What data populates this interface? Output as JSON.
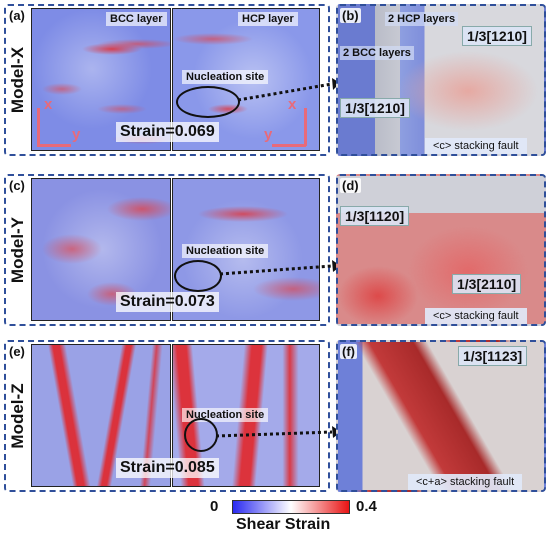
{
  "rows": [
    {
      "panel_left": "(a)",
      "panel_right": "(b)",
      "model": "Model-X",
      "left_map_label": "BCC layer",
      "right_map_label": "HCP layer",
      "nucleation": "Nucleation site",
      "strain": "Strain=0.069",
      "axis_x": "x",
      "axis_y": "y",
      "atom_labels": [
        "2 HCP layers",
        "2 BCC layers"
      ],
      "vectors": [
        "1/3[1210]",
        "1/3[1210]"
      ],
      "sf": "<c> stacking fault"
    },
    {
      "panel_left": "(c)",
      "panel_right": "(d)",
      "model": "Model-Y",
      "nucleation": "Nucleation site",
      "strain": "Strain=0.073",
      "vectors": [
        "1/3[1120]",
        "1/3[2110]"
      ],
      "sf": "<c> stacking fault"
    },
    {
      "panel_left": "(e)",
      "panel_right": "(f)",
      "model": "Model-Z",
      "nucleation": "Nucleation site",
      "strain": "Strain=0.085",
      "vectors": [
        "1/3[1123]"
      ],
      "sf": "<c+a> stacking fault"
    }
  ],
  "colorbar": {
    "min": "0",
    "max": "0.4",
    "title": "Shear Strain"
  },
  "colors": {
    "frame": "#2f4f9a",
    "low": "#2a2af0",
    "mid": "#ffffff",
    "high": "#e81414"
  }
}
